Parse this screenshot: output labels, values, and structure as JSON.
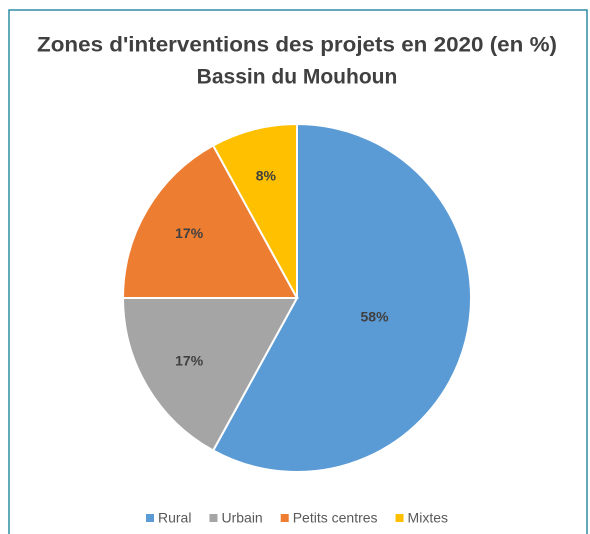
{
  "chart_data": {
    "type": "pie",
    "title": "Zones d'interventions des projets en 2020 (en %)",
    "subtitle": "Bassin du Mouhoun",
    "categories": [
      "Rural",
      "Urbain",
      "Petits centres",
      "Mixtes"
    ],
    "values": [
      58,
      17,
      17,
      8
    ],
    "value_labels": [
      "58%",
      "17%",
      "17%",
      "8%"
    ],
    "colors": [
      "#5b9bd5",
      "#a5a5a5",
      "#ed7d31",
      "#ffc000"
    ],
    "legend": "bottom"
  }
}
